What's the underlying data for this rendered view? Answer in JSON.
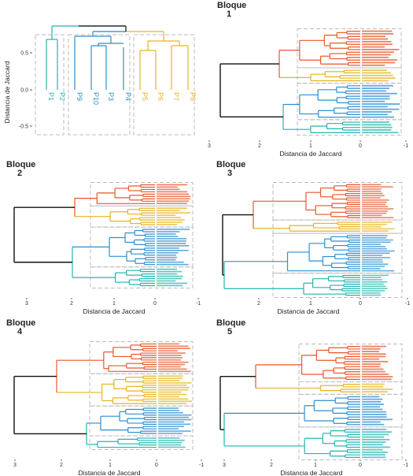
{
  "colors": {
    "orange": "#e8562a",
    "yellow": "#e6b31e",
    "blue": "#2b8fd1",
    "teal": "#21b5b0",
    "root": "#111111",
    "box": "#bbbbbb"
  },
  "chart_data": [
    {
      "type": "dendrogram",
      "panel": "top-left",
      "ylabel": "Distancia de Jaccard",
      "yticks": [
        "0.5",
        "0.0",
        "-0.5"
      ],
      "leaves": [
        {
          "label": "P1",
          "group": "teal"
        },
        {
          "label": "P2",
          "group": "teal"
        },
        {
          "label": "P9",
          "group": "blue"
        },
        {
          "label": "P10",
          "group": "blue"
        },
        {
          "label": "P3",
          "group": "blue"
        },
        {
          "label": "P4",
          "group": "blue"
        },
        {
          "label": "P5",
          "group": "yellow"
        },
        {
          "label": "P6",
          "group": "yellow"
        },
        {
          "label": "P7",
          "group": "yellow"
        },
        {
          "label": "P8",
          "group": "yellow"
        }
      ]
    },
    {
      "type": "dendrogram",
      "panel": "Bloque 1",
      "title": [
        "Bloque",
        "1"
      ],
      "xlabel": "Distancia de Jaccard",
      "xticks": [
        "3",
        "2",
        "1",
        "0",
        "-1"
      ],
      "groups": [
        {
          "color": "orange",
          "leaves": 14
        },
        {
          "color": "yellow",
          "leaves": 5
        },
        {
          "color": "blue",
          "leaves": 13
        },
        {
          "color": "teal",
          "leaves": 5
        }
      ]
    },
    {
      "type": "dendrogram",
      "panel": "Bloque 2",
      "title": [
        "Bloque",
        "2"
      ],
      "xlabel": "Distancia de Jaccard",
      "xticks": [
        "3",
        "2",
        "1",
        "0",
        "-1"
      ],
      "groups": [
        {
          "color": "orange",
          "leaves": 9
        },
        {
          "color": "yellow",
          "leaves": 8
        },
        {
          "color": "blue",
          "leaves": 16
        },
        {
          "color": "teal",
          "leaves": 8
        }
      ]
    },
    {
      "type": "dendrogram",
      "panel": "Bloque 3",
      "title": [
        "Bloque",
        "3"
      ],
      "xlabel": "Distancia de Jaccard",
      "xticks": [
        "2",
        "1",
        "0",
        "-1"
      ],
      "groups": [
        {
          "color": "orange",
          "leaves": 16
        },
        {
          "color": "yellow",
          "leaves": 5
        },
        {
          "color": "blue",
          "leaves": 17
        },
        {
          "color": "teal",
          "leaves": 10
        }
      ]
    },
    {
      "type": "dendrogram",
      "panel": "Bloque 4",
      "title": [
        "Bloque",
        "4"
      ],
      "xlabel": "Distancia de Jaccard",
      "xticks": [
        "3",
        "2",
        "1",
        "0",
        "-1"
      ],
      "groups": [
        {
          "color": "orange",
          "leaves": 13
        },
        {
          "color": "yellow",
          "leaves": 13
        },
        {
          "color": "blue",
          "leaves": 12
        },
        {
          "color": "teal",
          "leaves": 5
        }
      ]
    },
    {
      "type": "dendrogram",
      "panel": "Bloque 5",
      "title": [
        "Bloque",
        "5"
      ],
      "xlabel": "Distancia de Jaccard",
      "xticks": [
        "3",
        "2",
        "1",
        "0",
        "-1"
      ],
      "groups": [
        {
          "color": "orange",
          "leaves": 14
        },
        {
          "color": "yellow",
          "leaves": 4
        },
        {
          "color": "blue",
          "leaves": 12
        },
        {
          "color": "teal",
          "leaves": 12
        }
      ]
    }
  ]
}
